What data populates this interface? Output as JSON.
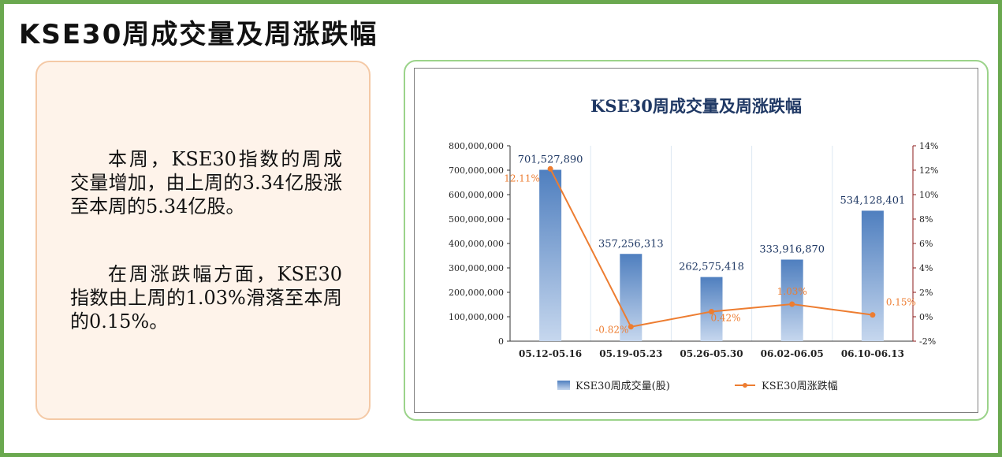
{
  "page": {
    "title": "KSE30周成交量及周涨跌幅",
    "para1": "本周，KSE30指数的周成交量增加，由上周的3.34亿股涨至本周的5.34亿股。",
    "para2": "在周涨跌幅方面，KSE30指数由上周的1.03%滑落至本周的0.15%。"
  },
  "colors": {
    "frame": "#6aa84f",
    "bar": "#4f7fbf",
    "line": "#ed7d31",
    "title": "#1f3864",
    "right_axis": "#8b1a1a"
  },
  "chart_data": {
    "type": "bar+line",
    "title": "KSE30周成交量及周涨跌幅",
    "categories": [
      "05.12-05.16",
      "05.19-05.23",
      "05.26-05.30",
      "06.02-06.05",
      "06.10-06.13"
    ],
    "series": [
      {
        "name": "KSE30周成交量(股)",
        "type": "bar",
        "axis": "left",
        "values": [
          701527890,
          357256313,
          262575418,
          333916870,
          534128401
        ],
        "labels": [
          "701,527,890",
          "357,256,313",
          "262,575,418",
          "333,916,870",
          "534,128,401"
        ]
      },
      {
        "name": "KSE30周涨跌幅",
        "type": "line",
        "axis": "right",
        "values": [
          12.11,
          -0.82,
          0.42,
          1.03,
          0.15
        ],
        "labels": [
          "12.11%",
          "-0.82%",
          "0.42%",
          "1.03%",
          "0.15%"
        ]
      }
    ],
    "y_left": {
      "min": 0,
      "max": 800000000,
      "step": 100000000,
      "ticks": [
        "0",
        "100,000,000",
        "200,000,000",
        "300,000,000",
        "400,000,000",
        "500,000,000",
        "600,000,000",
        "700,000,000",
        "800,000,000"
      ]
    },
    "y_right": {
      "min": -2,
      "max": 14,
      "step": 2,
      "ticks": [
        "-2%",
        "0%",
        "2%",
        "4%",
        "6%",
        "8%",
        "10%",
        "12%",
        "14%"
      ]
    },
    "legend_position": "bottom",
    "grid": "vertical"
  }
}
